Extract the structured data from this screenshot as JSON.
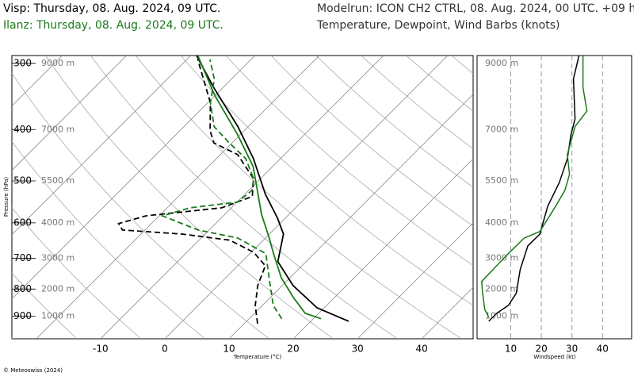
{
  "header": {
    "station_1": "Visp: Thursday, 08. Aug. 2024, 09 UTC.",
    "station_2": "Ilanz: Thursday, 08. Aug. 2024, 09 UTC.",
    "model_run": "Modelrun: ICON CH2 CTRL, 08. Aug. 2024, 00 UTC. +09 h",
    "subtitle": "Temperature, Dewpoint, Wind Barbs (knots)"
  },
  "footer": {
    "copyright": "© Meteoswiss (2024)"
  },
  "chart_data": [
    {
      "type": "skewt",
      "x_label": "Temperature (°C)",
      "y_label": "Pressure (hPa)",
      "xlim": [
        -23.8,
        48
      ],
      "xticks": [
        -10,
        0,
        10,
        20,
        30,
        40
      ],
      "ylim": [
        993,
        290
      ],
      "yticks": [
        300,
        400,
        500,
        600,
        700,
        800,
        900
      ],
      "height_labels": [
        {
          "value": 300,
          "label": "9000 m"
        },
        {
          "value": 400,
          "label": "7000 m"
        },
        {
          "value": 500,
          "label": "5500 m"
        },
        {
          "value": 600,
          "label": "4000 m"
        },
        {
          "value": 700,
          "label": "3000 m"
        },
        {
          "value": 800,
          "label": "2000 m"
        },
        {
          "value": 900,
          "label": "1000 m"
        }
      ],
      "series": [
        {
          "color": "#000000",
          "line_style": "solid",
          "pressure": [
            920,
            868,
            788,
            710,
            630,
            588,
            530,
            454,
            395,
            333,
            290
          ],
          "values": [
            25.9,
            18.9,
            11.7,
            5.6,
            2.2,
            -1.2,
            -6.8,
            -14.2,
            -21.6,
            -31.5,
            -39.1
          ]
        },
        {
          "color": "#000000",
          "line_style": "dashed",
          "pressure": [
            930,
            859,
            788,
            723,
            682,
            647,
            630,
            619,
            602,
            582,
            562,
            535,
            495,
            446,
            424,
            402,
            356,
            295
          ],
          "values": [
            12.1,
            8.9,
            6.2,
            4.3,
            0.4,
            -5.2,
            -13.6,
            -23.5,
            -25.1,
            -22,
            -11.5,
            -8.5,
            -11.1,
            -17.3,
            -22.8,
            -25.3,
            -29.6,
            -38.3
          ]
        },
        {
          "color": "#1a7a1a",
          "line_style": "solid",
          "pressure": [
            910,
            889,
            830,
            761,
            686,
            641,
            578,
            470,
            409,
            344,
            290
          ],
          "values": [
            21.2,
            17.9,
            13.6,
            8.6,
            3.7,
            0.6,
            -4.3,
            -13,
            -20.4,
            -30.2,
            -38.9
          ]
        },
        {
          "color": "#1a7a1a",
          "line_style": "dashed",
          "pressure": [
            910,
            859,
            774,
            686,
            641,
            619,
            582,
            562,
            548,
            521,
            495,
            454,
            424,
            395,
            356,
            321,
            295
          ],
          "values": [
            15.1,
            11.7,
            7.4,
            2.5,
            -4.3,
            -11.7,
            -19.5,
            -16.4,
            -9.9,
            -9.5,
            -11.1,
            -15.4,
            -20.4,
            -25.3,
            -29.6,
            -32.7,
            -36.4
          ]
        }
      ]
    },
    {
      "type": "line",
      "x_label": "Windspeed (kt)",
      "xlim": [
        -1,
        49.5
      ],
      "xticks": [
        10,
        20,
        30,
        40
      ],
      "ylim": [
        993,
        290
      ],
      "series": [
        {
          "color": "#000000",
          "pressure": [
            920,
            889,
            859,
            815,
            735,
            663,
            630,
            558,
            503,
            454,
            409,
            382,
            321,
            290
          ],
          "values": [
            2.8,
            5.4,
            9.2,
            11.8,
            13.1,
            15.6,
            19.5,
            22.1,
            25.9,
            28.5,
            29.7,
            31.0,
            30.5,
            32.3
          ]
        },
        {
          "color": "#1a7a1a",
          "pressure": [
            904,
            874,
            815,
            774,
            736,
            686,
            641,
            623,
            559,
            521,
            486,
            446,
            395,
            369,
            333,
            290
          ],
          "values": [
            2.8,
            1.5,
            0.8,
            0.5,
            4.1,
            9.2,
            14.4,
            19.5,
            24.6,
            27.7,
            29.2,
            28.5,
            31.0,
            34.9,
            33.6,
            33.6
          ]
        }
      ]
    }
  ]
}
